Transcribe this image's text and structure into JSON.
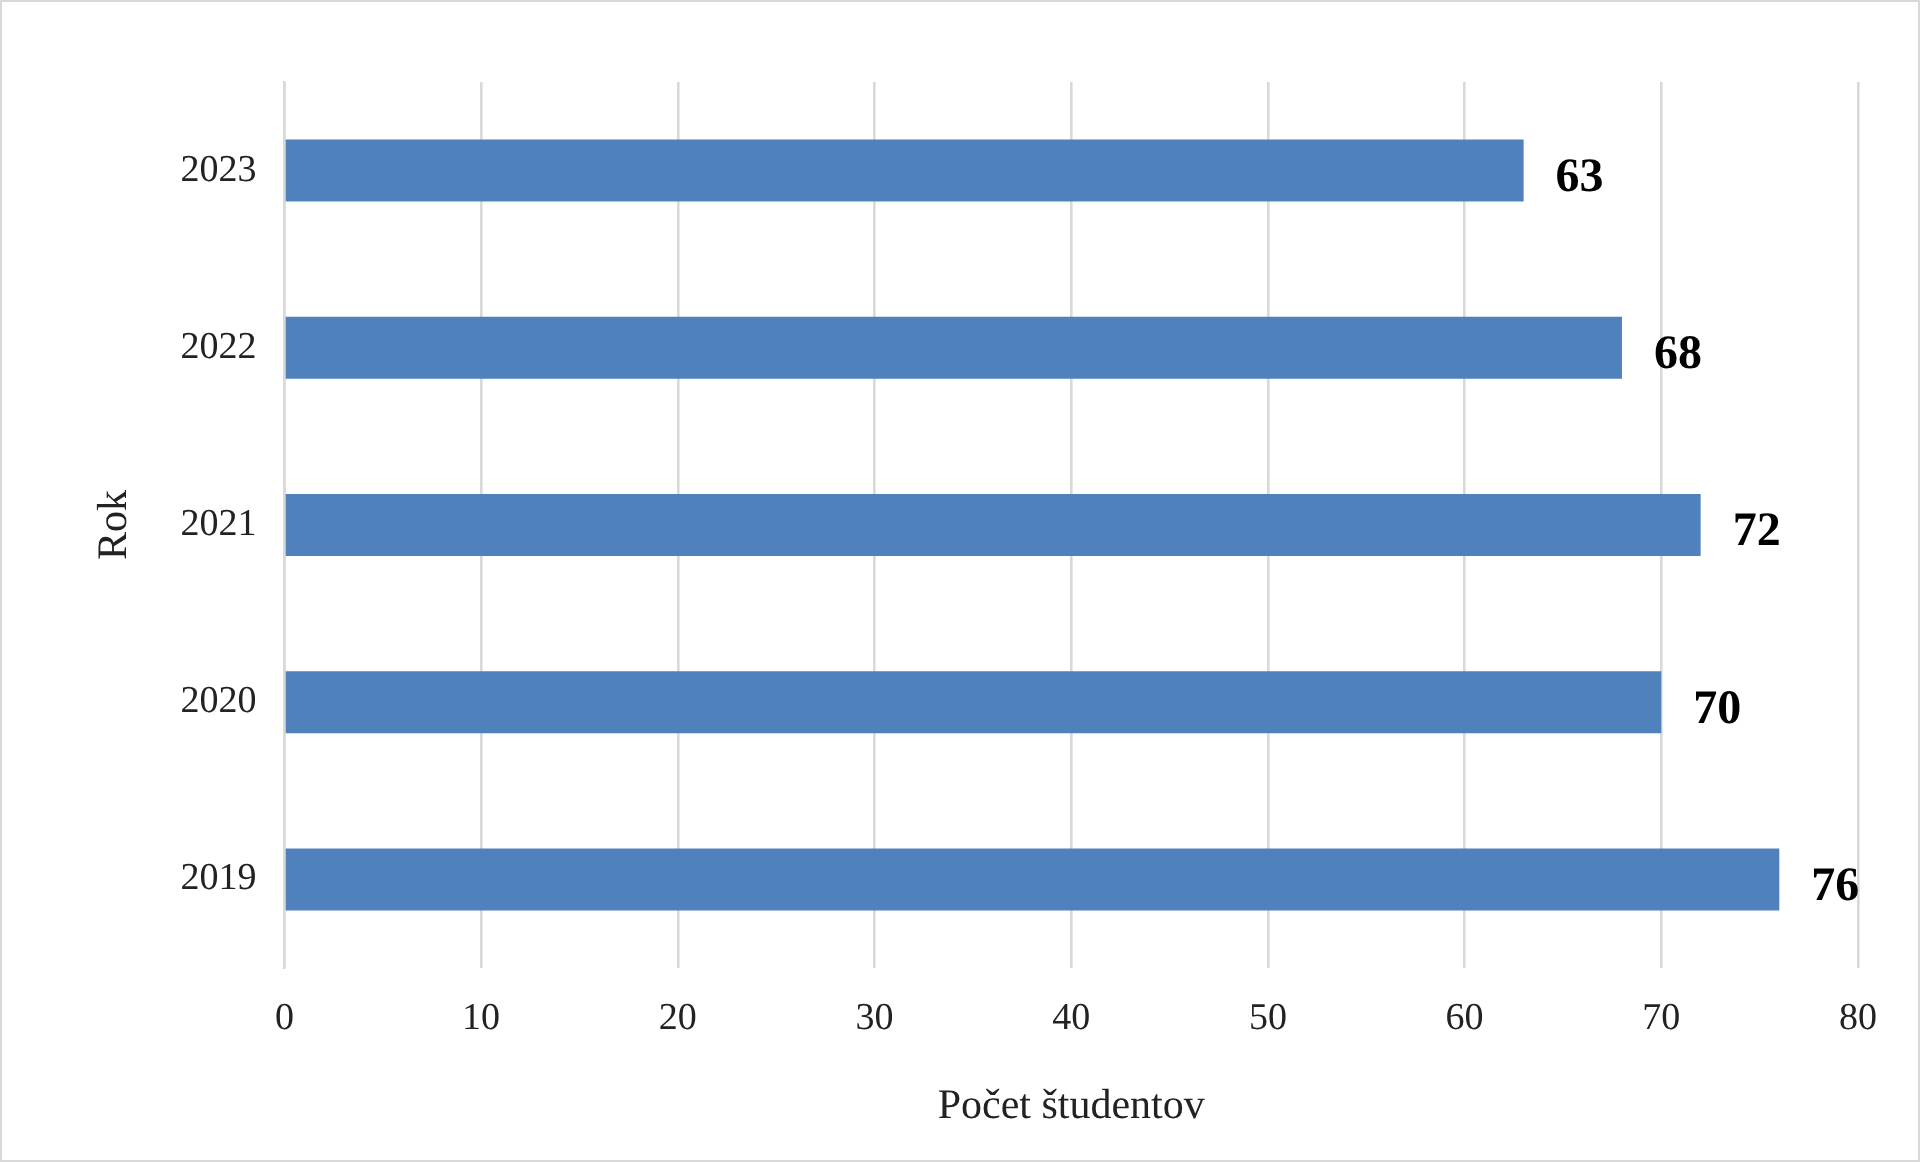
{
  "chart_data": {
    "type": "bar",
    "orientation": "horizontal",
    "xlabel": "Počet študentov",
    "ylabel": "Rok",
    "categories": [
      "2023",
      "2022",
      "2021",
      "2020",
      "2019"
    ],
    "values": [
      63,
      68,
      72,
      70,
      76
    ],
    "color": "#4f81bd",
    "xlim": [
      0,
      80
    ],
    "xticks": [
      0,
      10,
      20,
      30,
      40,
      50,
      60,
      70,
      80
    ],
    "grid": "x",
    "data_labels": true
  }
}
